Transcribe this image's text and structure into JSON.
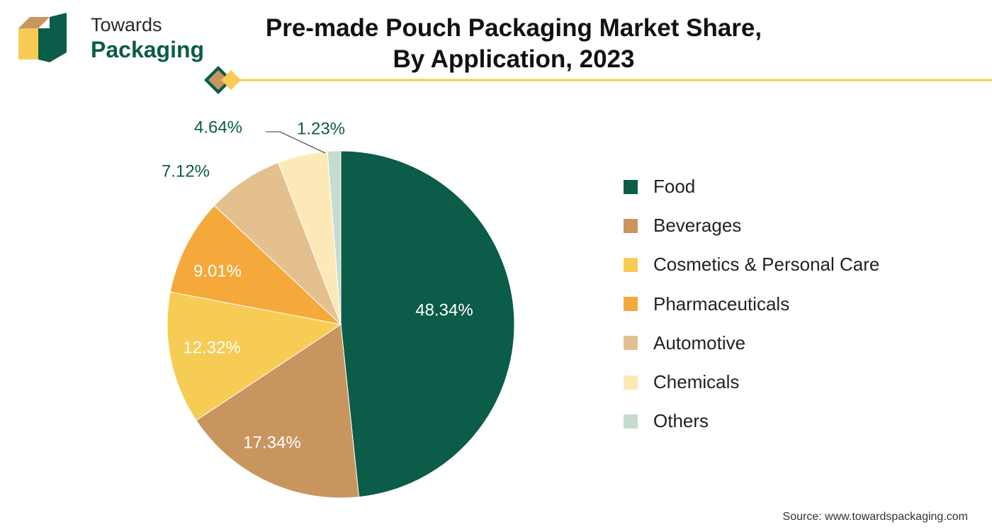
{
  "brand": {
    "line1": "Towards",
    "line2": "Packaging",
    "colors": {
      "green": "#0b5c48",
      "tan": "#c8955f",
      "yellow": "#f7cc55"
    }
  },
  "title": {
    "line1": "Pre-made Pouch Packaging Market Share,",
    "line2": "By Application, 2023"
  },
  "source": "Source: www.towardspackaging.com",
  "chart_data": {
    "type": "pie",
    "title": "Pre-made Pouch Packaging Market Share, By Application, 2023",
    "unit": "%",
    "start_angle": "12 o'clock",
    "direction": "clockwise",
    "legend_position": "right",
    "slices": [
      {
        "label": "Food",
        "value": 48.34,
        "display": "48.34%",
        "color": "#0b5c48",
        "label_color": "#ffffff"
      },
      {
        "label": "Beverages",
        "value": 17.34,
        "display": "17.34%",
        "color": "#c8955f",
        "label_color": "#ffffff"
      },
      {
        "label": "Cosmetics & Personal Care",
        "value": 12.32,
        "display": "12.32%",
        "color": "#f7cc55",
        "label_color": "#ffffff"
      },
      {
        "label": "Pharmaceuticals",
        "value": 9.01,
        "display": "9.01%",
        "color": "#f5a93a",
        "label_color": "#ffffff"
      },
      {
        "label": "Automotive",
        "value": 7.12,
        "display": "7.12%",
        "color": "#e5c08f",
        "label_color": "#0b5c48"
      },
      {
        "label": "Chemicals",
        "value": 4.64,
        "display": "4.64%",
        "color": "#fde9b8",
        "label_color": "#0b5c48"
      },
      {
        "label": "Others",
        "value": 1.23,
        "display": "1.23%",
        "color": "#c5dcd0",
        "label_color": "#0b5c48"
      }
    ]
  }
}
